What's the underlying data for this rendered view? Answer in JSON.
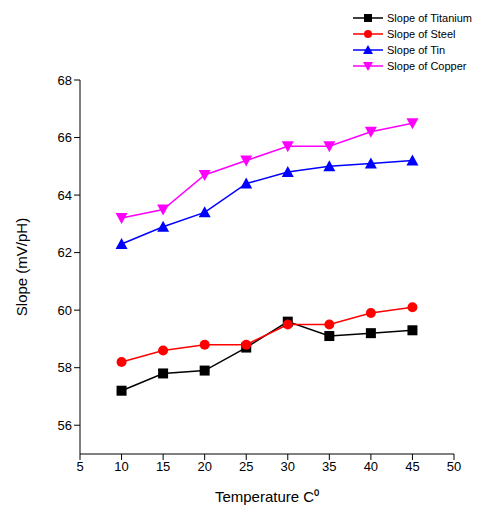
{
  "chart_data": {
    "type": "line",
    "x_label": "Temperature C⁰",
    "y_label": "Slope (mV/pH)",
    "x": [
      10,
      15,
      20,
      25,
      30,
      35,
      40,
      45
    ],
    "xlim": [
      5,
      50
    ],
    "xticks": [
      5,
      10,
      15,
      20,
      25,
      30,
      35,
      40,
      45,
      50
    ],
    "ylim": [
      55,
      68
    ],
    "yticks": [
      56,
      58,
      60,
      62,
      64,
      66,
      68
    ],
    "grid": false,
    "legend": "top-right",
    "series": [
      {
        "name": "Slope of Titanium",
        "color": "#000000",
        "marker": "square",
        "values": [
          57.2,
          57.8,
          57.9,
          58.7,
          59.6,
          59.1,
          59.2,
          59.3
        ]
      },
      {
        "name": "Slope of Steel",
        "color": "#ff0000",
        "marker": "circle",
        "values": [
          58.2,
          58.6,
          58.8,
          58.8,
          59.5,
          59.5,
          59.9,
          60.1
        ]
      },
      {
        "name": "Slope of Tin",
        "color": "#0000ff",
        "marker": "triangle",
        "values": [
          62.3,
          62.9,
          63.4,
          64.4,
          64.8,
          65.0,
          65.1,
          65.2
        ]
      },
      {
        "name": "Slope of Copper",
        "color": "#ff00ff",
        "marker": "triangle-down",
        "values": [
          63.2,
          63.5,
          64.7,
          65.2,
          65.7,
          65.7,
          66.2,
          66.5
        ]
      }
    ]
  }
}
